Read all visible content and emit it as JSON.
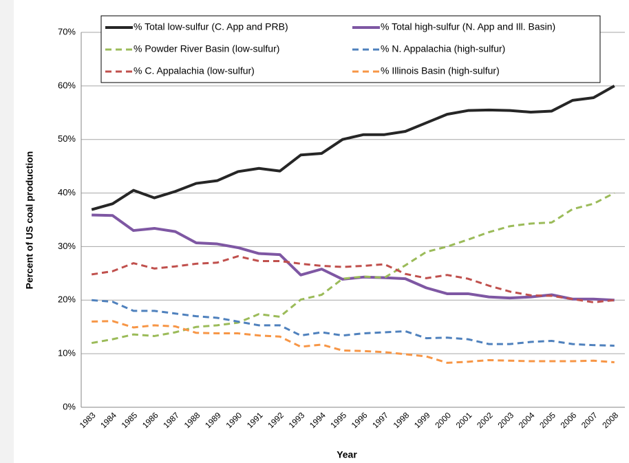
{
  "chart_data": {
    "type": "line",
    "y_label": "Percent of US coal production",
    "x_label": "Year",
    "categories": [
      "1983",
      "1984",
      "1985",
      "1986",
      "1987",
      "1988",
      "1989",
      "1990",
      "1991",
      "1992",
      "1993",
      "1994",
      "1995",
      "1996",
      "1997",
      "1998",
      "1999",
      "2000",
      "2001",
      "2002",
      "2003",
      "2004",
      "2005",
      "2006",
      "2007",
      "2008"
    ],
    "ylim": [
      0,
      70
    ],
    "yticks": [
      {
        "value": 0,
        "label": "0%"
      },
      {
        "value": 10,
        "label": "10%"
      },
      {
        "value": 20,
        "label": "20%"
      },
      {
        "value": 30,
        "label": "30%"
      },
      {
        "value": 40,
        "label": "40%"
      },
      {
        "value": 50,
        "label": "50%"
      },
      {
        "value": 60,
        "label": "60%"
      },
      {
        "value": 70,
        "label": "70%"
      }
    ],
    "grid": true,
    "legend": "top",
    "series": [
      {
        "name": "% Total low-sulfur (C. App and PRB)",
        "color": "#262626",
        "dashed": false,
        "values": [
          36.9,
          38,
          40.5,
          39.1,
          40.3,
          41.8,
          42.3,
          44,
          44.6,
          44.1,
          47.1,
          47.4,
          50,
          50.9,
          50.9,
          51.5,
          53.1,
          54.7,
          55.4,
          55.5,
          55.4,
          55.1,
          55.3,
          57.3,
          57.8,
          60
        ]
      },
      {
        "name": "% Total high-sulfur (N. App and Ill. Basin)",
        "color": "#7e57a3",
        "dashed": false,
        "values": [
          35.9,
          35.8,
          33,
          33.4,
          32.8,
          30.7,
          30.5,
          29.8,
          28.7,
          28.5,
          24.7,
          25.8,
          23.9,
          24.3,
          24.2,
          24,
          22.3,
          21.2,
          21.2,
          20.6,
          20.4,
          20.6,
          21,
          20.2,
          20.2,
          20
        ]
      },
      {
        "name": "% Powder River Basin (low-sulfur)",
        "color": "#9bbb59",
        "dashed": true,
        "values": [
          12,
          12.7,
          13.6,
          13.3,
          14,
          15,
          15.3,
          15.8,
          17.4,
          16.9,
          20.1,
          21,
          24,
          24.4,
          24.2,
          26.5,
          29,
          30,
          31.3,
          32.7,
          33.8,
          34.3,
          34.5,
          37,
          38,
          40
        ]
      },
      {
        "name": "% N. Appalachia (high-sulfur)",
        "color": "#4f81bd",
        "dashed": true,
        "values": [
          20,
          19.7,
          18,
          18,
          17.5,
          17,
          16.7,
          16,
          15.3,
          15.3,
          13.4,
          14,
          13.4,
          13.8,
          14,
          14.2,
          12.9,
          13,
          12.7,
          11.8,
          11.8,
          12.2,
          12.4,
          11.8,
          11.6,
          11.5
        ]
      },
      {
        "name": "% C. Appalachia (low-sulfur)",
        "color": "#c0504d",
        "dashed": true,
        "values": [
          24.8,
          25.4,
          26.9,
          25.9,
          26.3,
          26.8,
          27,
          28.2,
          27.3,
          27.3,
          26.8,
          26.4,
          26.2,
          26.4,
          26.7,
          24.9,
          24.1,
          24.7,
          24,
          22.7,
          21.6,
          20.9,
          20.8,
          20.2,
          19.6,
          20
        ]
      },
      {
        "name": "% Illinois Basin (high-sulfur)",
        "color": "#f79646",
        "dashed": true,
        "values": [
          16,
          16.1,
          14.9,
          15.3,
          15.1,
          13.9,
          13.8,
          13.8,
          13.4,
          13.2,
          11.3,
          11.7,
          10.6,
          10.5,
          10.3,
          9.9,
          9.5,
          8.3,
          8.5,
          8.8,
          8.7,
          8.6,
          8.6,
          8.6,
          8.7,
          8.4
        ]
      }
    ]
  }
}
